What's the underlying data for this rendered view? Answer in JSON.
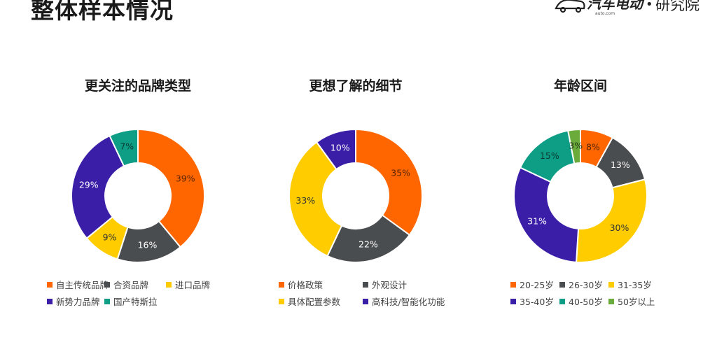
{
  "header": {
    "title": "整体样本情况",
    "logo": {
      "text_main": "汽车电动",
      "text_small": "auto.com",
      "text_right": "研究院",
      "bullet": "•"
    }
  },
  "colors": {
    "orange": "#FF6600",
    "darkgray": "#4A4D50",
    "yellow": "#FFCC00",
    "purple": "#3A1EA8",
    "teal": "#0E9E86",
    "green": "#6AAB3B"
  },
  "chart_data": [
    {
      "type": "pie",
      "title": "更关注的品牌类型",
      "labels": [
        "自主传统品牌",
        "合资品牌",
        "进口品牌",
        "新势力品牌",
        "国产特斯拉"
      ],
      "values": [
        39,
        16,
        9,
        29,
        7
      ],
      "value_labels": [
        "39%",
        "16%",
        "9%",
        "29%",
        "7%"
      ],
      "colors": [
        "#FF6600",
        "#4A4D50",
        "#FFCC00",
        "#3A1EA8",
        "#0E9E86"
      ],
      "legend": "bottom"
    },
    {
      "type": "pie",
      "title": "更想了解的细节",
      "labels": [
        "价格政策",
        "外观设计",
        "具体配置参数",
        "高科技/智能化功能"
      ],
      "values": [
        35,
        22,
        33,
        10
      ],
      "value_labels": [
        "35%",
        "22%",
        "33%",
        "10%"
      ],
      "colors": [
        "#FF6600",
        "#4A4D50",
        "#FFCC00",
        "#3A1EA8"
      ],
      "legend": "bottom"
    },
    {
      "type": "pie",
      "title": "年龄区间",
      "labels": [
        "20-25岁",
        "26-30岁",
        "31-35岁",
        "35-40岁",
        "40-50岁",
        "50岁以上"
      ],
      "values": [
        8,
        13,
        30,
        31,
        15,
        3
      ],
      "value_labels": [
        "8%",
        "13%",
        "30%",
        "31%",
        "15%",
        "3%"
      ],
      "colors": [
        "#FF6600",
        "#4A4D50",
        "#FFCC00",
        "#3A1EA8",
        "#0E9E86",
        "#6AAB3B"
      ],
      "legend": "bottom"
    }
  ]
}
